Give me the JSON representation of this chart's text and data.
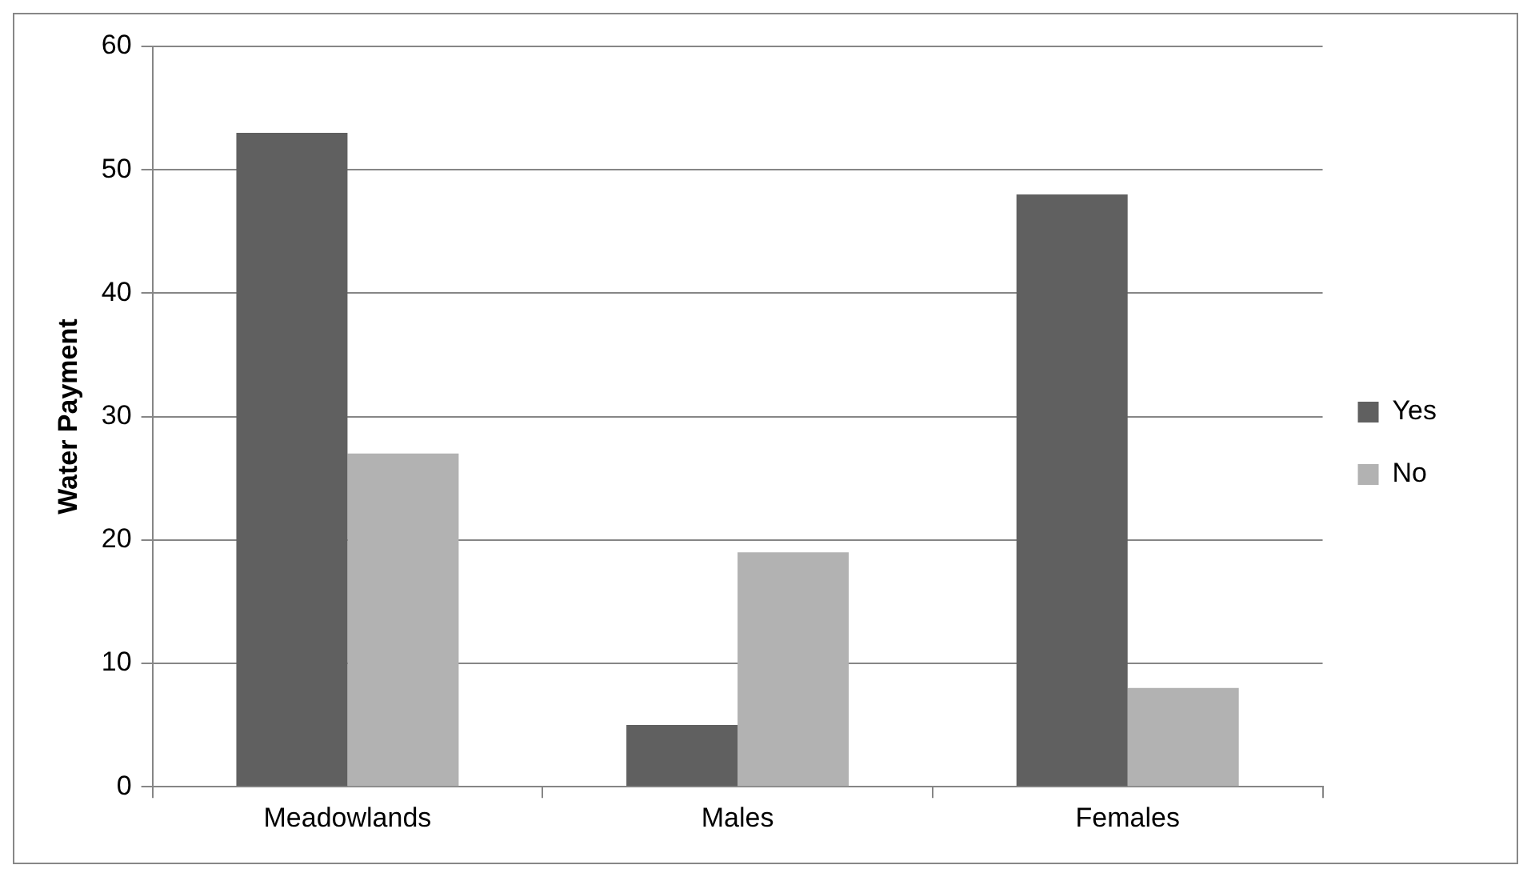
{
  "chart_data": {
    "type": "bar",
    "ylabel": "Water Payment",
    "categories": [
      "Meadowlands",
      "Males",
      "Females"
    ],
    "series": [
      {
        "name": "Yes",
        "color": "#606060",
        "values": [
          53,
          5,
          48
        ]
      },
      {
        "name": "No",
        "color": "#b2b2b2",
        "values": [
          27,
          19,
          8
        ]
      }
    ],
    "ylim": [
      0,
      60
    ],
    "yticks": [
      0,
      10,
      20,
      30,
      40,
      50,
      60
    ],
    "grid": "y",
    "legend": "right"
  }
}
